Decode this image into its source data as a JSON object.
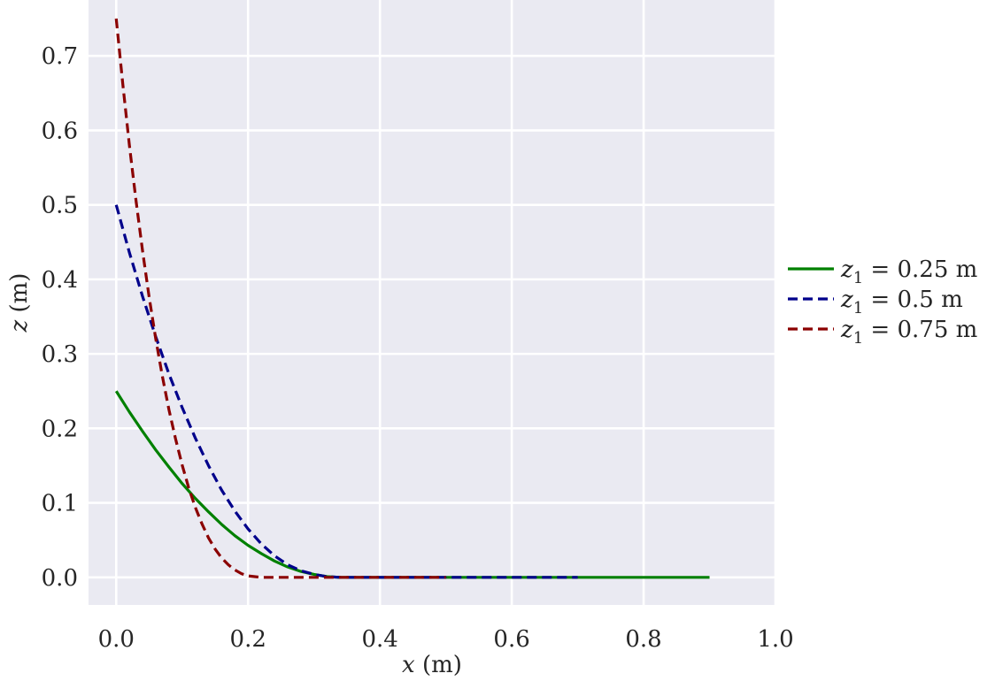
{
  "chart_data": {
    "type": "line",
    "title": "",
    "xlabel": {
      "symbol": "x",
      "unit": " (m)"
    },
    "ylabel": {
      "symbol": "z",
      "unit": " (m)"
    },
    "xlim": [
      -0.042,
      1.0
    ],
    "ylim": [
      -0.037,
      0.775
    ],
    "xticks": [
      0.0,
      0.2,
      0.4,
      0.6,
      0.8,
      1.0
    ],
    "xtick_labels": [
      "0.0",
      "0.2",
      "0.4",
      "0.6",
      "0.8",
      "1.0"
    ],
    "yticks": [
      0.0,
      0.1,
      0.2,
      0.3,
      0.4,
      0.5,
      0.6,
      0.7
    ],
    "ytick_labels": [
      "0.0",
      "0.1",
      "0.2",
      "0.3",
      "0.4",
      "0.5",
      "0.6",
      "0.7"
    ],
    "grid": true,
    "legend": "outside-right",
    "colors": {
      "background": "#eaeaf2",
      "grid": "#ffffff"
    },
    "series": [
      {
        "name": {
          "symbol": "z",
          "sub": "1",
          "rest": " = 0.25 m"
        },
        "color": "#008000",
        "dash": "solid",
        "x": [
          0.0,
          0.02,
          0.04,
          0.06,
          0.08,
          0.1,
          0.12,
          0.14,
          0.16,
          0.18,
          0.2,
          0.22,
          0.24,
          0.26,
          0.28,
          0.3,
          0.32,
          0.34,
          0.36,
          0.4,
          0.5,
          0.6,
          0.7,
          0.8,
          0.9
        ],
        "y": [
          0.25,
          0.222,
          0.196,
          0.171,
          0.148,
          0.126,
          0.106,
          0.088,
          0.071,
          0.056,
          0.043,
          0.032,
          0.022,
          0.014,
          0.008,
          0.004,
          0.001,
          0.0,
          0.0,
          0.0,
          0.0,
          0.0,
          0.0,
          0.0,
          0.0
        ]
      },
      {
        "name": {
          "symbol": "z",
          "sub": "1",
          "rest": " = 0.5 m"
        },
        "color": "#00008b",
        "dash": "dashed",
        "x": [
          0.0,
          0.02,
          0.04,
          0.06,
          0.08,
          0.1,
          0.12,
          0.14,
          0.16,
          0.18,
          0.2,
          0.22,
          0.24,
          0.26,
          0.28,
          0.3,
          0.32,
          0.34,
          0.36,
          0.4,
          0.5,
          0.6,
          0.7
        ],
        "y": [
          0.5,
          0.436,
          0.377,
          0.323,
          0.273,
          0.228,
          0.187,
          0.15,
          0.117,
          0.089,
          0.065,
          0.045,
          0.029,
          0.017,
          0.009,
          0.004,
          0.001,
          0.0,
          0.0,
          0.0,
          0.0,
          0.0,
          0.0
        ]
      },
      {
        "name": {
          "symbol": "z",
          "sub": "1",
          "rest": " = 0.75 m"
        },
        "color": "#8b0000",
        "dash": "dashed",
        "x": [
          0.0,
          0.01,
          0.02,
          0.03,
          0.04,
          0.05,
          0.06,
          0.07,
          0.08,
          0.09,
          0.1,
          0.11,
          0.12,
          0.13,
          0.14,
          0.15,
          0.16,
          0.17,
          0.18,
          0.19,
          0.2,
          0.21,
          0.22,
          0.23,
          0.24,
          0.25,
          0.3,
          0.4,
          0.5
        ],
        "y": [
          0.75,
          0.662,
          0.58,
          0.506,
          0.438,
          0.376,
          0.32,
          0.27,
          0.225,
          0.186,
          0.151,
          0.12,
          0.094,
          0.072,
          0.053,
          0.038,
          0.026,
          0.017,
          0.01,
          0.005,
          0.002,
          0.001,
          0.0,
          0.0,
          0.0,
          0.0,
          0.0,
          0.0,
          0.0
        ]
      }
    ]
  }
}
